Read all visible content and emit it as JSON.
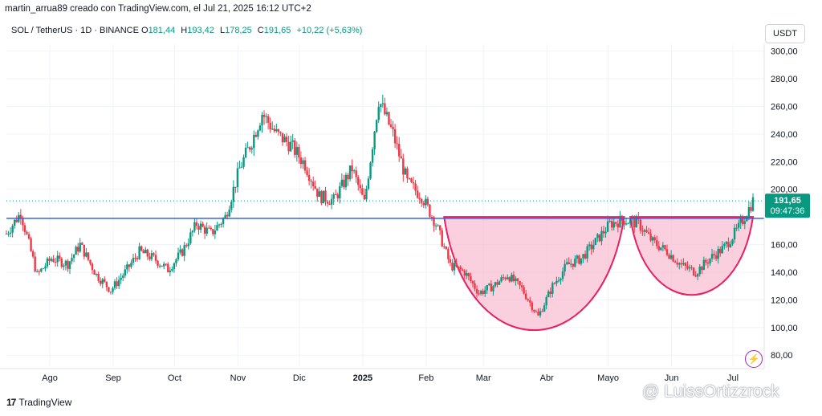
{
  "attribution": "martin_arrua89 creado con TradingView.com, el Jul 21, 2025 16:12 UTC+2",
  "legend": {
    "symbol": "SOL / TetherUS · 1D · BINANCE",
    "o_label": "O",
    "o_value": "181,44",
    "h_label": "H",
    "h_value": "193,42",
    "l_label": "L",
    "l_value": "178,25",
    "c_label": "C",
    "c_value": "191,65",
    "change": "+10,22 (+5,63%)"
  },
  "currency_button": "USDT",
  "branding": {
    "logo_mark": "17",
    "logo_text": "TradingView"
  },
  "watermark": "@ LuissOrtizzrock",
  "colors": {
    "up": "#089981",
    "down": "#f23645",
    "support_line": "#2962ff",
    "pattern_fill": "#f8bbd0",
    "pattern_stroke": "#e91e63",
    "price_tag": "#089981"
  },
  "chart_data": {
    "type": "candlestick",
    "symbol": "SOL / TetherUS",
    "interval": "1D",
    "exchange": "BINANCE",
    "x_labels": [
      "Ago",
      "Sep",
      "Oct",
      "Nov",
      "Dic",
      "2025",
      "Feb",
      "Mar",
      "Abr",
      "Mayo",
      "Jun",
      "Jul"
    ],
    "y_ticks": [
      "80,00",
      "100,00",
      "120,00",
      "140,00",
      "160,00",
      "200,00",
      "220,00",
      "240,00",
      "260,00",
      "280,00",
      "300,00"
    ],
    "ylim": [
      72,
      305
    ],
    "last_price": "191,65",
    "countdown": "09:47:36",
    "horizontal_line": {
      "price": 179
    },
    "approx_close_series": [
      {
        "date": "2024-07-21",
        "close": 168
      },
      {
        "date": "2024-07-28",
        "close": 183
      },
      {
        "date": "2024-08-05",
        "close": 138
      },
      {
        "date": "2024-08-12",
        "close": 150
      },
      {
        "date": "2024-08-20",
        "close": 146
      },
      {
        "date": "2024-08-26",
        "close": 160
      },
      {
        "date": "2024-09-03",
        "close": 138
      },
      {
        "date": "2024-09-10",
        "close": 127
      },
      {
        "date": "2024-09-17",
        "close": 140
      },
      {
        "date": "2024-09-24",
        "close": 155
      },
      {
        "date": "2024-10-01",
        "close": 150
      },
      {
        "date": "2024-10-08",
        "close": 142
      },
      {
        "date": "2024-10-15",
        "close": 155
      },
      {
        "date": "2024-10-22",
        "close": 175
      },
      {
        "date": "2024-10-29",
        "close": 168
      },
      {
        "date": "2024-11-05",
        "close": 180
      },
      {
        "date": "2024-11-12",
        "close": 215
      },
      {
        "date": "2024-11-18",
        "close": 235
      },
      {
        "date": "2024-11-23",
        "close": 255
      },
      {
        "date": "2024-11-30",
        "close": 240
      },
      {
        "date": "2024-12-07",
        "close": 232
      },
      {
        "date": "2024-12-14",
        "close": 218
      },
      {
        "date": "2024-12-21",
        "close": 195
      },
      {
        "date": "2024-12-28",
        "close": 192
      },
      {
        "date": "2025-01-06",
        "close": 215
      },
      {
        "date": "2025-01-12",
        "close": 190
      },
      {
        "date": "2025-01-19",
        "close": 265
      },
      {
        "date": "2025-01-26",
        "close": 240
      },
      {
        "date": "2025-02-02",
        "close": 205
      },
      {
        "date": "2025-02-09",
        "close": 195
      },
      {
        "date": "2025-02-16",
        "close": 175
      },
      {
        "date": "2025-02-23",
        "close": 145
      },
      {
        "date": "2025-03-02",
        "close": 140
      },
      {
        "date": "2025-03-09",
        "close": 125
      },
      {
        "date": "2025-03-16",
        "close": 130
      },
      {
        "date": "2025-03-23",
        "close": 138
      },
      {
        "date": "2025-03-30",
        "close": 128
      },
      {
        "date": "2025-04-07",
        "close": 108
      },
      {
        "date": "2025-04-14",
        "close": 130
      },
      {
        "date": "2025-04-21",
        "close": 145
      },
      {
        "date": "2025-04-28",
        "close": 150
      },
      {
        "date": "2025-05-05",
        "close": 162
      },
      {
        "date": "2025-05-12",
        "close": 175
      },
      {
        "date": "2025-05-19",
        "close": 178
      },
      {
        "date": "2025-05-26",
        "close": 175
      },
      {
        "date": "2025-06-02",
        "close": 162
      },
      {
        "date": "2025-06-09",
        "close": 155
      },
      {
        "date": "2025-06-16",
        "close": 145
      },
      {
        "date": "2025-06-23",
        "close": 140
      },
      {
        "date": "2025-06-30",
        "close": 150
      },
      {
        "date": "2025-07-07",
        "close": 158
      },
      {
        "date": "2025-07-14",
        "close": 172
      },
      {
        "date": "2025-07-21",
        "close": 191.65
      }
    ],
    "drawings": [
      {
        "name": "pattern-cup-1",
        "left_date": "2025-02-20",
        "bottom": 94,
        "right_date": "2025-05-19",
        "rim": 180
      },
      {
        "name": "pattern-cup-2",
        "left_date": "2025-05-22",
        "bottom": 128,
        "right_date": "2025-07-21",
        "rim": 180
      }
    ]
  }
}
